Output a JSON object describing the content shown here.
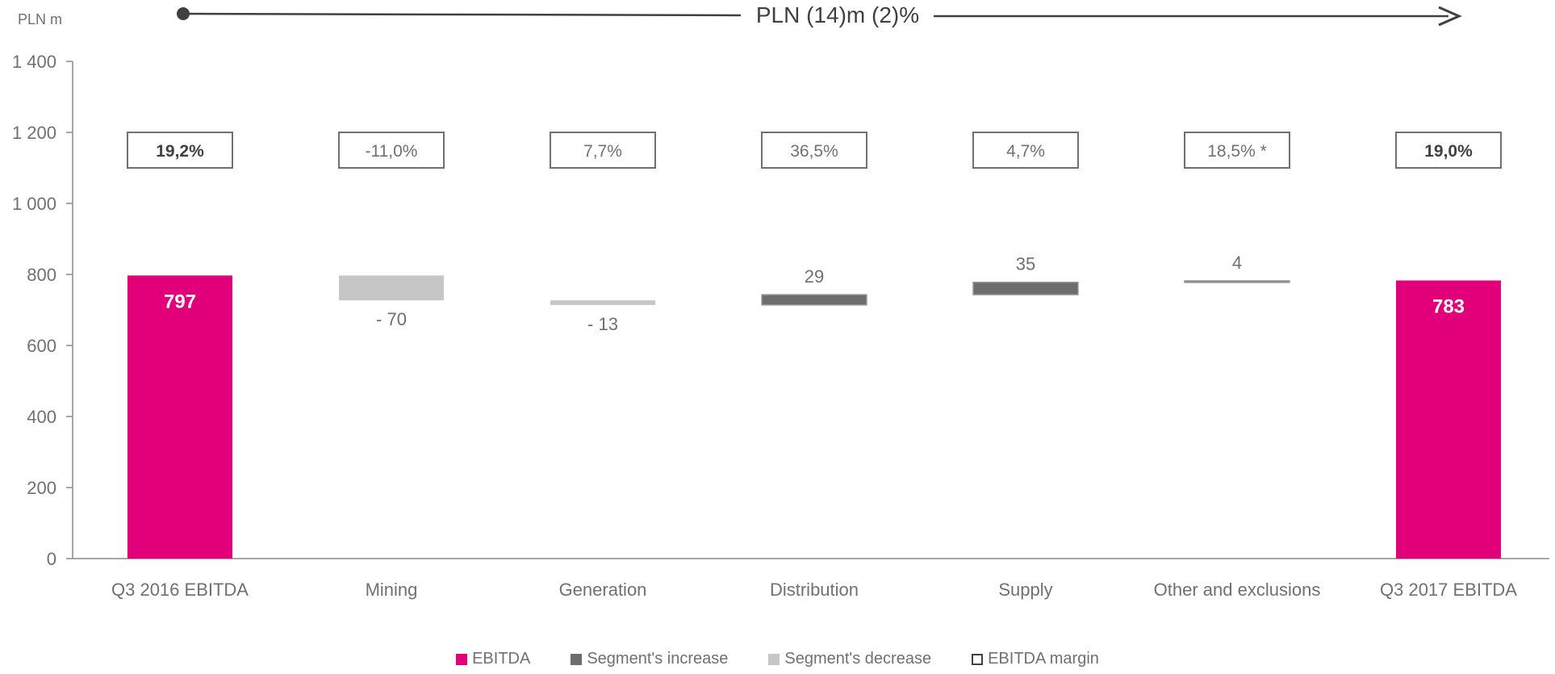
{
  "chart_data": {
    "type": "waterfall",
    "unit_label": "PLN m",
    "headline": "PLN (14)m (2)%",
    "categories": [
      "Q3 2016 EBITDA",
      "Mining",
      "Generation",
      "Distribution",
      "Supply",
      "Other and exclusions",
      "Q3 2017 EBITDA"
    ],
    "bars": [
      {
        "category": "Q3 2016 EBITDA",
        "kind": "total",
        "start": 0,
        "end": 797,
        "label": "797"
      },
      {
        "category": "Mining",
        "kind": "decrease",
        "start": 797,
        "end": 727,
        "label": "- 70"
      },
      {
        "category": "Generation",
        "kind": "decrease",
        "start": 727,
        "end": 714,
        "label": "- 13"
      },
      {
        "category": "Distribution",
        "kind": "increase",
        "start": 714,
        "end": 743,
        "label": "29"
      },
      {
        "category": "Supply",
        "kind": "increase",
        "start": 743,
        "end": 778,
        "label": "35"
      },
      {
        "category": "Other and exclusions",
        "kind": "increase",
        "start": 778,
        "end": 782,
        "label": "4"
      },
      {
        "category": "Q3 2017 EBITDA",
        "kind": "total",
        "start": 0,
        "end": 783,
        "label": "783"
      }
    ],
    "margins": [
      "19,2%",
      "-11,0%",
      "7,7%",
      "36,5%",
      "4,7%",
      "18,5% *",
      "19,0%"
    ],
    "margin_bold": [
      true,
      false,
      false,
      false,
      false,
      false,
      true
    ],
    "ylim": [
      0,
      1400
    ],
    "yticks": [
      0,
      200,
      400,
      600,
      800,
      1000,
      1200,
      1400
    ],
    "ytick_labels": [
      "0",
      "200",
      "400",
      "600",
      "800",
      "1 000",
      "1 200",
      "1 400"
    ],
    "legend": [
      "EBITDA",
      "Segment's increase",
      "Segment's decrease",
      "EBITDA margin"
    ],
    "grid": false,
    "colors": {
      "ebitda": "#e2007a",
      "increase": "#6d6d6d",
      "decrease": "#c6c6c6",
      "margin_border": "#707070",
      "axis": "#8a8a8a",
      "text": "#707070"
    }
  }
}
